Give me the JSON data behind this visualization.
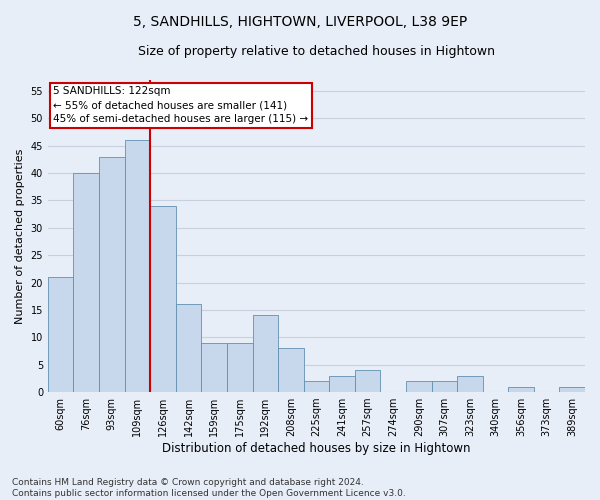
{
  "title": "5, SANDHILLS, HIGHTOWN, LIVERPOOL, L38 9EP",
  "subtitle": "Size of property relative to detached houses in Hightown",
  "xlabel": "Distribution of detached houses by size in Hightown",
  "ylabel": "Number of detached properties",
  "categories": [
    "60sqm",
    "76sqm",
    "93sqm",
    "109sqm",
    "126sqm",
    "142sqm",
    "159sqm",
    "175sqm",
    "192sqm",
    "208sqm",
    "225sqm",
    "241sqm",
    "257sqm",
    "274sqm",
    "290sqm",
    "307sqm",
    "323sqm",
    "340sqm",
    "356sqm",
    "373sqm",
    "389sqm"
  ],
  "values": [
    21,
    40,
    43,
    46,
    34,
    16,
    9,
    9,
    14,
    8,
    2,
    3,
    4,
    0,
    2,
    2,
    3,
    0,
    1,
    0,
    1
  ],
  "bar_color": "#c8d8ec",
  "bar_edge_color": "#6090b0",
  "vline_x": 3.5,
  "vline_color": "#cc0000",
  "annotation_text": "5 SANDHILLS: 122sqm\n← 55% of detached houses are smaller (141)\n45% of semi-detached houses are larger (115) →",
  "annotation_box_facecolor": "#ffffff",
  "annotation_box_edgecolor": "#cc0000",
  "ylim": [
    0,
    57
  ],
  "yticks": [
    0,
    5,
    10,
    15,
    20,
    25,
    30,
    35,
    40,
    45,
    50,
    55
  ],
  "footnote_line1": "Contains HM Land Registry data © Crown copyright and database right 2024.",
  "footnote_line2": "Contains public sector information licensed under the Open Government Licence v3.0.",
  "background_color": "#e8eef8",
  "grid_color": "#c8d0e0",
  "title_fontsize": 10,
  "subtitle_fontsize": 9,
  "tick_fontsize": 7,
  "ylabel_fontsize": 8,
  "xlabel_fontsize": 8.5,
  "footnote_fontsize": 6.5
}
